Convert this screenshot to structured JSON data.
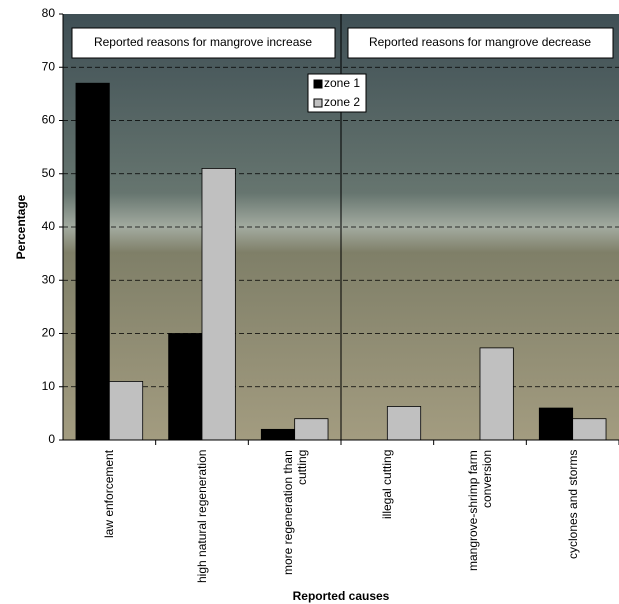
{
  "chart_data": {
    "type": "bar",
    "xlabel": "Reported causes",
    "ylabel": "Percentage",
    "categories": [
      "law enforcement",
      "high natural regeneration",
      "more regeneration than cutting",
      "illegal cutting",
      "mangrove-shrimp farm conversion",
      "cyclones and  storms"
    ],
    "series": [
      {
        "name": "zone 1",
        "color": "#000000",
        "values": [
          67,
          20,
          2,
          0,
          0,
          6
        ]
      },
      {
        "name": "zone 2",
        "color": "#c0c0c0",
        "values": [
          11,
          51,
          4,
          6.3,
          17.3,
          4
        ]
      }
    ],
    "annotations": [
      "Reported reasons for mangrove increase",
      "Reported reasons for mangrove decrease"
    ],
    "ylim": [
      0,
      80
    ],
    "yticks": [
      0,
      10,
      20,
      30,
      40,
      50,
      60,
      70,
      80
    ],
    "grid": true
  }
}
